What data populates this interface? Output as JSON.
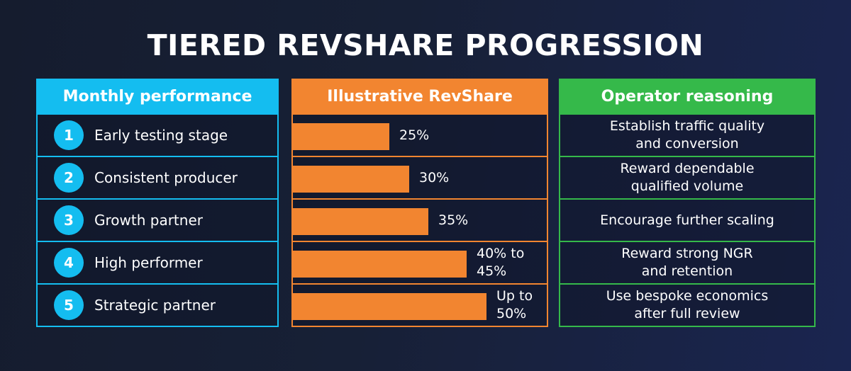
{
  "title": "TIERED REVSHARE PROGRESSION",
  "headers": {
    "performance": "Monthly performance",
    "revshare": "Illustrative RevShare",
    "reasoning": "Operator reasoning"
  },
  "colors": {
    "performance": "#14bdf0",
    "revshare": "#f28530",
    "reasoning": "#35b94a"
  },
  "chart_data": {
    "type": "bar",
    "orientation": "horizontal",
    "categories": [
      "Early testing stage",
      "Consistent producer",
      "Growth partner",
      "High performer",
      "Strategic partner"
    ],
    "values": [
      25,
      30,
      35,
      45,
      50
    ],
    "value_labels": [
      "25%",
      "30%",
      "35%",
      "40% to\n45%",
      "Up to\n50%"
    ],
    "xlim": [
      0,
      100
    ]
  },
  "rows": [
    {
      "num": "1",
      "label": "Early testing stage",
      "revshare": "25%",
      "reasoning": "Establish traffic quality\nand conversion"
    },
    {
      "num": "2",
      "label": "Consistent producer",
      "revshare": "30%",
      "reasoning": "Reward dependable\nqualified volume"
    },
    {
      "num": "3",
      "label": "Growth partner",
      "revshare": "35%",
      "reasoning": "Encourage further scaling"
    },
    {
      "num": "4",
      "label": "High performer",
      "revshare": "40% to\n45%",
      "reasoning": "Reward strong NGR\nand retention"
    },
    {
      "num": "5",
      "label": "Strategic partner",
      "revshare": "Up to\n50%",
      "reasoning": "Use bespoke economics\nafter full review"
    }
  ]
}
